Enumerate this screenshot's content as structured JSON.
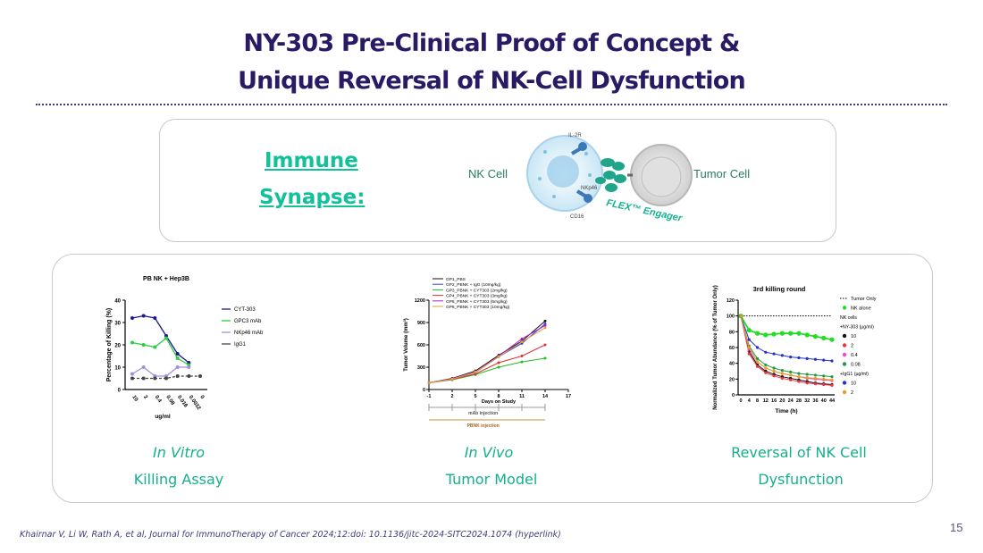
{
  "slide": {
    "title_line1": "NY-303 Pre-Clinical Proof of Concept &",
    "title_line2": "Unique Reversal of NK-Cell Dysfunction",
    "page_number": "15",
    "footnote": "Khairnar V, Li W, Rath A, et al, Journal for ImmunoTherapy of Cancer 2024;12:doi: 10.1136/jitc-2024-SITC2024.1074 (hyperlink)"
  },
  "synapse": {
    "heading_line1": "Immune",
    "heading_line2": "Synapse:",
    "nk_cell_label": "NK Cell",
    "tumor_cell_label": "Tumor Cell",
    "il2r_label": "IL-2R",
    "nkp46_label": "NKp46",
    "cd16_label": "CD16",
    "engager_label": "FLEX™ Engager"
  },
  "captions": {
    "in_vitro": "In Vitro",
    "killing_assay": "Killing Assay",
    "in_vivo": "In Vivo",
    "tumor_model": "Tumor Model",
    "reversal": "Reversal of NK Cell",
    "dysfunction": "Dysfunction"
  },
  "chart_data": [
    {
      "type": "line",
      "title": "PB NK + Hep3B",
      "xlabel": "ug/ml",
      "ylabel": "Percentage of Killing (%)",
      "categories": [
        "10",
        "2",
        "0.4",
        "0.08",
        "0.016",
        "0.0032",
        "0"
      ],
      "ylim": [
        0,
        40
      ],
      "yticks": [
        "0",
        "10",
        "20",
        "30",
        "40"
      ],
      "series": [
        {
          "name": "CYT-303",
          "color": "#1a1a8c",
          "values": [
            32,
            33,
            32,
            24,
            16,
            12,
            null
          ]
        },
        {
          "name": "GPC3 mAb",
          "color": "#2ecc40",
          "values": [
            21,
            20,
            19,
            23,
            14,
            11,
            null
          ]
        },
        {
          "name": "NKp46 mAb",
          "color": "#a08ee0",
          "values": [
            7,
            10,
            6,
            6,
            10,
            10,
            null
          ]
        },
        {
          "name": "IgG1",
          "color": "#444444",
          "values": [
            5,
            5,
            5,
            5,
            6,
            6,
            6
          ]
        }
      ]
    },
    {
      "type": "line",
      "title": "",
      "xlabel": "Days on Study",
      "ylabel": "Tumor Volume (mm³)",
      "x": [
        -1,
        2,
        5,
        8,
        11,
        14
      ],
      "xticks": [
        "-1",
        "2",
        "5",
        "8",
        "11",
        "14",
        "17"
      ],
      "ylim": [
        0,
        1200
      ],
      "yticks": [
        "0",
        "300",
        "600",
        "900",
        "1200"
      ],
      "series": [
        {
          "name": "GP1_PBS",
          "color": "#111111",
          "values": [
            90,
            150,
            250,
            460,
            650,
            920
          ]
        },
        {
          "name": "GP2_PBNK + IgG (10mg/kg)",
          "color": "#3344cc",
          "values": [
            90,
            140,
            230,
            440,
            620,
            880
          ]
        },
        {
          "name": "GP3_PBNK + CYT303 (2mg/kg)",
          "color": "#22bb22",
          "values": [
            90,
            130,
            200,
            300,
            370,
            420
          ]
        },
        {
          "name": "GP4_PBNK + CYT303 (3mg/kg)",
          "color": "#dd3333",
          "values": [
            90,
            135,
            210,
            360,
            450,
            600
          ]
        },
        {
          "name": "GP5_PBNK + CYT303 (5mg/kg)",
          "color": "#aa22cc",
          "values": [
            90,
            145,
            240,
            450,
            680,
            860
          ]
        },
        {
          "name": "GP6_PBNK + CYT303 (10mg/kg)",
          "color": "#e0a040",
          "values": [
            90,
            140,
            235,
            440,
            640,
            830
          ]
        }
      ],
      "annotations": [
        "mAb injection",
        "PBNK injection"
      ]
    },
    {
      "type": "line",
      "title": "3rd killing round",
      "xlabel": "Time (h)",
      "ylabel": "Normalized Tumor Abundance (% of Tumor Only)",
      "x": [
        0,
        4,
        8,
        12,
        16,
        20,
        24,
        28,
        32,
        36,
        40,
        44
      ],
      "xticks": [
        "0",
        "4",
        "8",
        "12",
        "16",
        "20",
        "24",
        "28",
        "32",
        "36",
        "40",
        "44"
      ],
      "ylim": [
        0,
        120
      ],
      "yticks": [
        "0",
        "20",
        "40",
        "60",
        "80",
        "100",
        "120"
      ],
      "legend_headers": [
        "NK cells",
        "+NY-303 (µg/ml)",
        "+IgG1 (µg/ml)"
      ],
      "series": [
        {
          "name": "Tumor Only",
          "color": "#000000",
          "values": [
            100,
            100,
            100,
            100,
            100,
            100,
            100,
            100,
            100,
            100,
            100,
            100
          ]
        },
        {
          "name": "NK alone",
          "color": "#22dd22",
          "values": [
            100,
            82,
            78,
            76,
            77,
            78,
            78,
            78,
            76,
            74,
            72,
            70
          ]
        },
        {
          "name": "10",
          "color": "#111111",
          "values": [
            100,
            55,
            38,
            30,
            26,
            23,
            21,
            19,
            17,
            15,
            14,
            13
          ]
        },
        {
          "name": "2",
          "color": "#ee3344",
          "values": [
            100,
            52,
            36,
            28,
            24,
            21,
            19,
            17,
            15,
            14,
            13,
            12
          ]
        },
        {
          "name": "0.4",
          "color": "#ee44dd",
          "values": [
            100,
            58,
            42,
            34,
            30,
            27,
            25,
            23,
            21,
            20,
            19,
            18
          ]
        },
        {
          "name": "0.08",
          "color": "#229944",
          "values": [
            100,
            62,
            46,
            38,
            34,
            31,
            29,
            27,
            26,
            25,
            24,
            23
          ]
        },
        {
          "name": "10 ",
          "color": "#2233cc",
          "values": [
            100,
            70,
            60,
            54,
            52,
            50,
            48,
            47,
            46,
            45,
            44,
            43
          ]
        },
        {
          "name": "2 ",
          "color": "#e0a020",
          "values": [
            100,
            60,
            42,
            34,
            30,
            27,
            25,
            23,
            22,
            21,
            20,
            19
          ]
        }
      ]
    }
  ]
}
